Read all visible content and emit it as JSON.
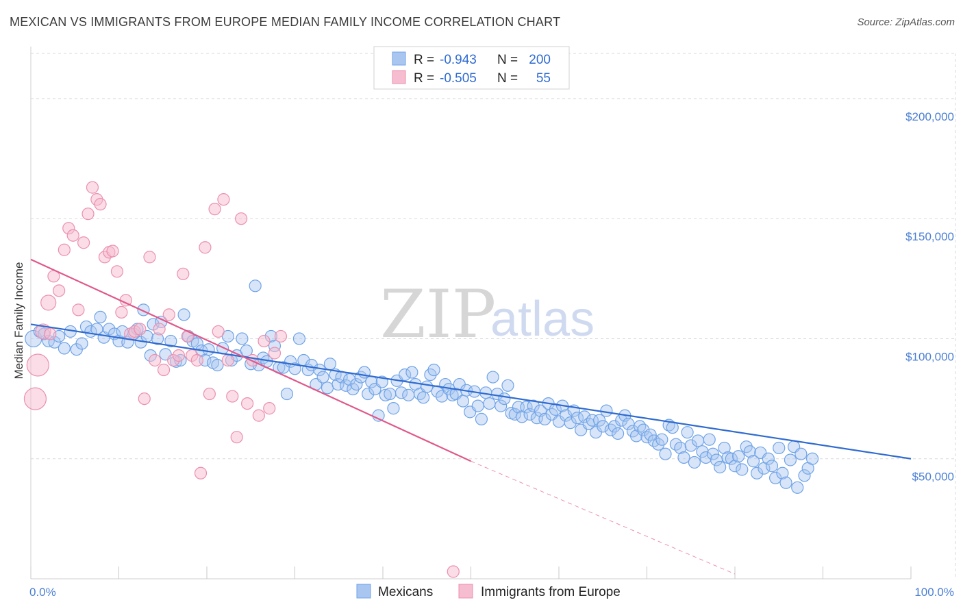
{
  "title": "MEXICAN VS IMMIGRANTS FROM EUROPE MEDIAN FAMILY INCOME CORRELATION CHART",
  "source": "Source: ZipAtlas.com",
  "watermark": {
    "zip": "ZIP",
    "atlas": "atlas"
  },
  "colors": {
    "blue": "#6fa3e8",
    "blue_fill": "#a9c6f0",
    "blue_line": "#2f6bd0",
    "pink": "#ec8fae",
    "pink_fill": "#f6bcd0",
    "pink_line": "#e0588a",
    "grid": "#d9d9d9",
    "tick_text": "#4a7fd4"
  },
  "legend": {
    "rows": [
      {
        "r_label": "R =",
        "r_value": "-0.943",
        "n_label": "N =",
        "n_value": "200"
      },
      {
        "r_label": "R =",
        "r_value": "-0.505",
        "n_label": "N =",
        "n_value": "55"
      }
    ]
  },
  "bottom_legend": [
    "Mexicans",
    "Immigrants from Europe"
  ],
  "chart_data": {
    "type": "scatter",
    "title": "MEXICAN VS IMMIGRANTS FROM EUROPE MEDIAN FAMILY INCOME CORRELATION CHART",
    "xlabel": "",
    "ylabel": "Median Family Income",
    "xlim": [
      0,
      100
    ],
    "ylim": [
      0,
      200000
    ],
    "x_tick_labels": [
      "0.0%",
      "100.0%"
    ],
    "y_ticks": [
      50000,
      100000,
      150000,
      200000
    ],
    "y_tick_labels": [
      "$50,000",
      "$100,000",
      "$150,000",
      "$200,000"
    ],
    "grid": true,
    "legend_position": "top-center",
    "series": [
      {
        "name": "Mexicans",
        "r": -0.943,
        "n": 200,
        "trend": {
          "x": [
            0,
            100
          ],
          "y": [
            106000,
            50000
          ]
        },
        "points": [
          [
            0.3,
            100000
          ],
          [
            1.0,
            103000
          ],
          [
            1.5,
            102000
          ],
          [
            2.0,
            99000
          ],
          [
            2.7,
            98500
          ],
          [
            3.2,
            101000
          ],
          [
            3.8,
            96000
          ],
          [
            4.5,
            103000
          ],
          [
            5.2,
            95500
          ],
          [
            5.8,
            98000
          ],
          [
            6.3,
            105000
          ],
          [
            6.8,
            103000
          ],
          [
            7.5,
            104000
          ],
          [
            7.9,
            109000
          ],
          [
            8.3,
            100500
          ],
          [
            8.9,
            104000
          ],
          [
            9.5,
            102000
          ],
          [
            10.0,
            99000
          ],
          [
            10.4,
            103000
          ],
          [
            11.0,
            98500
          ],
          [
            11.7,
            102000
          ],
          [
            12.1,
            104000
          ],
          [
            12.5,
            98500
          ],
          [
            12.8,
            112000
          ],
          [
            13.2,
            101000
          ],
          [
            13.6,
            93000
          ],
          [
            13.9,
            106000
          ],
          [
            14.4,
            100000
          ],
          [
            14.8,
            107000
          ],
          [
            15.3,
            93500
          ],
          [
            15.9,
            99000
          ],
          [
            16.5,
            90500
          ],
          [
            17.0,
            91000
          ],
          [
            17.4,
            110000
          ],
          [
            17.9,
            101000
          ],
          [
            18.4,
            99000
          ],
          [
            18.9,
            98000
          ],
          [
            19.4,
            95000
          ],
          [
            19.8,
            91000
          ],
          [
            20.2,
            95500
          ],
          [
            20.7,
            90000
          ],
          [
            21.2,
            89000
          ],
          [
            21.8,
            96000
          ],
          [
            22.4,
            101000
          ],
          [
            22.8,
            91000
          ],
          [
            23.4,
            93000
          ],
          [
            24.0,
            100000
          ],
          [
            24.5,
            95000
          ],
          [
            25.0,
            89500
          ],
          [
            25.5,
            122000
          ],
          [
            25.9,
            89000
          ],
          [
            26.4,
            92000
          ],
          [
            26.8,
            90500
          ],
          [
            27.3,
            101000
          ],
          [
            27.7,
            97000
          ],
          [
            28.2,
            88000
          ],
          [
            28.7,
            88000
          ],
          [
            29.1,
            77000
          ],
          [
            29.5,
            90500
          ],
          [
            30.0,
            87500
          ],
          [
            30.5,
            100000
          ],
          [
            31.0,
            91000
          ],
          [
            31.5,
            87000
          ],
          [
            31.9,
            89000
          ],
          [
            32.4,
            81000
          ],
          [
            32.8,
            87000
          ],
          [
            33.2,
            84000
          ],
          [
            33.7,
            79500
          ],
          [
            34.0,
            89500
          ],
          [
            34.6,
            85000
          ],
          [
            34.9,
            81000
          ],
          [
            35.3,
            84000
          ],
          [
            35.8,
            80500
          ],
          [
            36.2,
            83000
          ],
          [
            36.6,
            79000
          ],
          [
            37.0,
            81000
          ],
          [
            37.5,
            84000
          ],
          [
            37.9,
            86000
          ],
          [
            38.3,
            77000
          ],
          [
            38.7,
            82000
          ],
          [
            39.1,
            79000
          ],
          [
            39.5,
            68000
          ],
          [
            39.9,
            82000
          ],
          [
            40.3,
            76500
          ],
          [
            40.8,
            77000
          ],
          [
            41.2,
            71000
          ],
          [
            41.6,
            82500
          ],
          [
            42.1,
            77500
          ],
          [
            42.5,
            85000
          ],
          [
            42.9,
            76500
          ],
          [
            43.3,
            86000
          ],
          [
            43.7,
            81000
          ],
          [
            44.2,
            77000
          ],
          [
            44.6,
            75500
          ],
          [
            45.0,
            80000
          ],
          [
            45.4,
            85000
          ],
          [
            45.8,
            87000
          ],
          [
            46.2,
            78000
          ],
          [
            46.7,
            76000
          ],
          [
            47.1,
            81000
          ],
          [
            47.5,
            79000
          ],
          [
            47.9,
            76500
          ],
          [
            48.3,
            77000
          ],
          [
            48.7,
            81000
          ],
          [
            49.1,
            74000
          ],
          [
            49.5,
            78500
          ],
          [
            49.9,
            69500
          ],
          [
            50.4,
            78000
          ],
          [
            50.8,
            72000
          ],
          [
            51.2,
            66500
          ],
          [
            51.7,
            77500
          ],
          [
            52.1,
            73000
          ],
          [
            52.5,
            84000
          ],
          [
            53.0,
            77000
          ],
          [
            53.4,
            72000
          ],
          [
            53.8,
            75000
          ],
          [
            54.2,
            80500
          ],
          [
            54.6,
            69000
          ],
          [
            55.0,
            68500
          ],
          [
            55.4,
            71500
          ],
          [
            55.8,
            67500
          ],
          [
            56.3,
            71500
          ],
          [
            56.7,
            68500
          ],
          [
            57.1,
            72000
          ],
          [
            57.5,
            67000
          ],
          [
            57.9,
            70000
          ],
          [
            58.4,
            66500
          ],
          [
            58.8,
            73000
          ],
          [
            59.2,
            68500
          ],
          [
            59.6,
            70500
          ],
          [
            60.0,
            65500
          ],
          [
            60.4,
            72000
          ],
          [
            60.8,
            68000
          ],
          [
            61.3,
            65000
          ],
          [
            61.7,
            70000
          ],
          [
            62.1,
            67000
          ],
          [
            62.5,
            62000
          ],
          [
            62.9,
            67500
          ],
          [
            63.4,
            64500
          ],
          [
            63.8,
            66000
          ],
          [
            64.2,
            61000
          ],
          [
            64.6,
            66000
          ],
          [
            65.0,
            63500
          ],
          [
            65.4,
            70000
          ],
          [
            65.9,
            62000
          ],
          [
            66.3,
            63500
          ],
          [
            66.7,
            60500
          ],
          [
            67.1,
            66000
          ],
          [
            67.5,
            68000
          ],
          [
            67.9,
            64500
          ],
          [
            68.4,
            61500
          ],
          [
            68.8,
            59500
          ],
          [
            69.2,
            63500
          ],
          [
            69.6,
            62000
          ],
          [
            70.0,
            59000
          ],
          [
            70.4,
            60000
          ],
          [
            70.8,
            57500
          ],
          [
            71.3,
            56000
          ],
          [
            71.7,
            58000
          ],
          [
            72.1,
            52000
          ],
          [
            72.5,
            64000
          ],
          [
            72.9,
            63000
          ],
          [
            73.3,
            56000
          ],
          [
            73.8,
            54500
          ],
          [
            74.2,
            50500
          ],
          [
            74.6,
            61000
          ],
          [
            75.0,
            55500
          ],
          [
            75.4,
            48500
          ],
          [
            75.8,
            57500
          ],
          [
            76.3,
            53000
          ],
          [
            76.7,
            50500
          ],
          [
            77.1,
            58000
          ],
          [
            77.5,
            52000
          ],
          [
            77.9,
            49500
          ],
          [
            78.3,
            46500
          ],
          [
            78.8,
            54500
          ],
          [
            79.2,
            50500
          ],
          [
            79.6,
            50000
          ],
          [
            80.0,
            47000
          ],
          [
            80.4,
            51000
          ],
          [
            80.8,
            45500
          ],
          [
            81.3,
            55000
          ],
          [
            81.7,
            53000
          ],
          [
            82.1,
            49000
          ],
          [
            82.5,
            44000
          ],
          [
            82.9,
            52500
          ],
          [
            83.3,
            46000
          ],
          [
            83.8,
            50000
          ],
          [
            84.2,
            47000
          ],
          [
            84.6,
            42000
          ],
          [
            85.0,
            54500
          ],
          [
            85.4,
            44000
          ],
          [
            85.8,
            40000
          ],
          [
            86.3,
            49500
          ],
          [
            86.7,
            55000
          ],
          [
            87.1,
            38000
          ],
          [
            87.5,
            52000
          ],
          [
            87.9,
            43000
          ],
          [
            88.3,
            46000
          ],
          [
            88.8,
            50000
          ]
        ]
      },
      {
        "name": "Immigrants from Europe",
        "r": -0.505,
        "n": 55,
        "trend": {
          "x": [
            0,
            50
          ],
          "y": [
            133000,
            49000
          ]
        },
        "trend_dashed": {
          "x": [
            50,
            80
          ],
          "y": [
            49000,
            2000
          ]
        },
        "points": [
          [
            0.5,
            75000
          ],
          [
            0.8,
            89000
          ],
          [
            1.4,
            103000
          ],
          [
            2.0,
            115000
          ],
          [
            2.6,
            126000
          ],
          [
            3.2,
            120000
          ],
          [
            3.8,
            137000
          ],
          [
            4.3,
            146000
          ],
          [
            4.8,
            143000
          ],
          [
            5.4,
            112000
          ],
          [
            6.0,
            140000
          ],
          [
            6.5,
            152000
          ],
          [
            7.0,
            163000
          ],
          [
            7.5,
            158000
          ],
          [
            7.9,
            156000
          ],
          [
            8.4,
            134000
          ],
          [
            8.9,
            136000
          ],
          [
            9.3,
            136500
          ],
          [
            9.8,
            128000
          ],
          [
            10.3,
            111000
          ],
          [
            10.8,
            116000
          ],
          [
            11.3,
            102000
          ],
          [
            11.8,
            103000
          ],
          [
            12.4,
            104000
          ],
          [
            12.9,
            75000
          ],
          [
            13.5,
            134000
          ],
          [
            14.1,
            91000
          ],
          [
            14.6,
            104000
          ],
          [
            15.1,
            87000
          ],
          [
            15.7,
            110000
          ],
          [
            16.2,
            91000
          ],
          [
            16.8,
            93000
          ],
          [
            17.3,
            127000
          ],
          [
            17.8,
            101000
          ],
          [
            18.3,
            93000
          ],
          [
            18.9,
            91000
          ],
          [
            19.3,
            44000
          ],
          [
            19.8,
            138000
          ],
          [
            20.3,
            77000
          ],
          [
            20.9,
            154000
          ],
          [
            21.3,
            103000
          ],
          [
            21.9,
            158000
          ],
          [
            22.4,
            91000
          ],
          [
            22.9,
            76000
          ],
          [
            23.4,
            59000
          ],
          [
            23.9,
            150000
          ],
          [
            24.6,
            73000
          ],
          [
            25.2,
            91000
          ],
          [
            25.9,
            68000
          ],
          [
            26.5,
            99000
          ],
          [
            27.1,
            71000
          ],
          [
            27.7,
            94000
          ],
          [
            28.4,
            101000
          ],
          [
            48.0,
            3000
          ],
          [
            2.2,
            102000
          ]
        ]
      }
    ]
  }
}
